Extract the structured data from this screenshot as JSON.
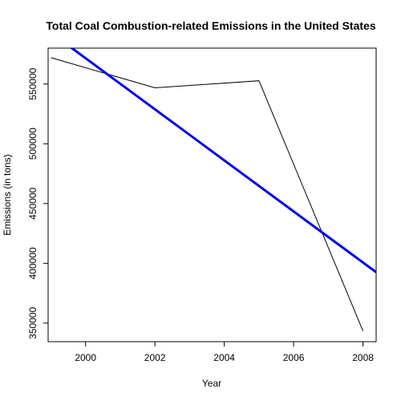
{
  "chart_data": {
    "type": "line",
    "title": "Total Coal Combustion-related Emissions in the United States",
    "xlabel": "Year",
    "ylabel": "Emissions (in tons)",
    "xlim": [
      1998.92,
      2008.38
    ],
    "ylim": [
      334500,
      580000
    ],
    "x_ticks": [
      2000,
      2002,
      2004,
      2006,
      2008
    ],
    "y_ticks": [
      350000,
      400000,
      450000,
      500000,
      550000
    ],
    "grid": false,
    "legend": "none",
    "series": [
      {
        "x": [
          1999,
          2002,
          2005,
          2008
        ],
        "values": [
          572000,
          546800,
          552700,
          343400
        ],
        "color": "#000000"
      },
      {
        "x": [
          1999,
          2008.38
        ],
        "values": [
          592900,
          392600
        ],
        "color": "#0000ee",
        "style": "trend"
      }
    ]
  }
}
